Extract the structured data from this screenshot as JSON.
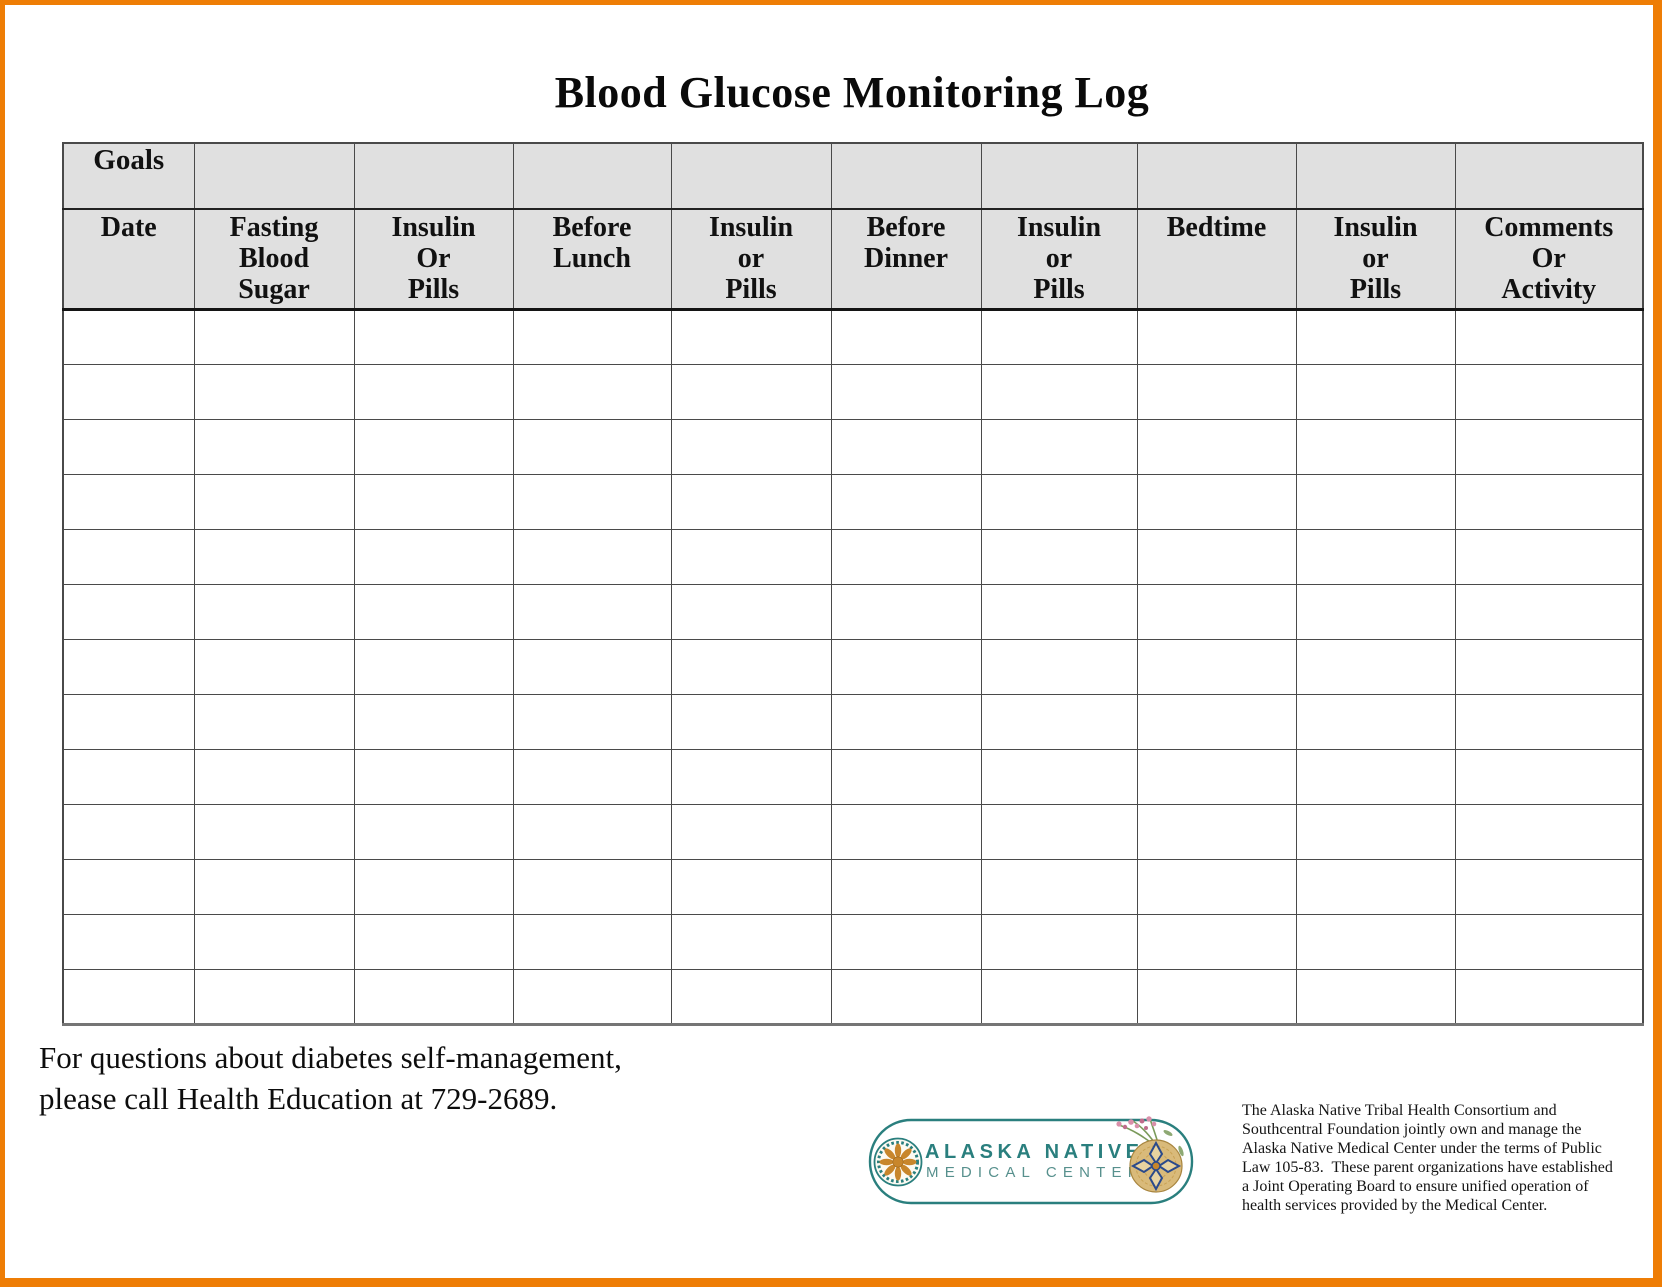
{
  "page": {
    "title": "Blood Glucose Monitoring Log"
  },
  "colors": {
    "orange": "#EE7D05",
    "header_bg": "#E0E0E0",
    "grid": "#4A4A4A",
    "teal": "#2A7F7E",
    "teal_light": "#57908D",
    "gold": "#C8862B",
    "basket_tan": "#D9BA7A",
    "navy": "#2B4A8B",
    "pink": "#D98FA9",
    "green": "#7A9A5A"
  },
  "table": {
    "goals_label": "Goals",
    "empty_row_count": 13,
    "columns": [
      {
        "label": "Date"
      },
      {
        "label": "Fasting\nBlood\nSugar"
      },
      {
        "label": "Insulin\nOr\nPills"
      },
      {
        "label": "Before\nLunch"
      },
      {
        "label": "Insulin\nor\nPills"
      },
      {
        "label": "Before\nDinner"
      },
      {
        "label": "Insulin\nor\nPills"
      },
      {
        "label": "Bedtime"
      },
      {
        "label": "Insulin\nor\nPills"
      },
      {
        "label": "Comments\nOr\nActivity"
      }
    ]
  },
  "footer": {
    "note": "For questions about diabetes self-management,\nplease call Health Education at 729-2689."
  },
  "logo": {
    "line1": "ALASKA NATIVE",
    "line2": "MEDICAL CENTER"
  },
  "disclaimer": {
    "text": "The Alaska Native Tribal Health Consortium and\nSouthcentral Foundation jointly own and manage the\nAlaska Native Medical Center under the terms of Public\nLaw 105-83.  These parent organizations have established\na Joint Operating Board to ensure unified operation of\nhealth services provided by the Medical Center."
  }
}
